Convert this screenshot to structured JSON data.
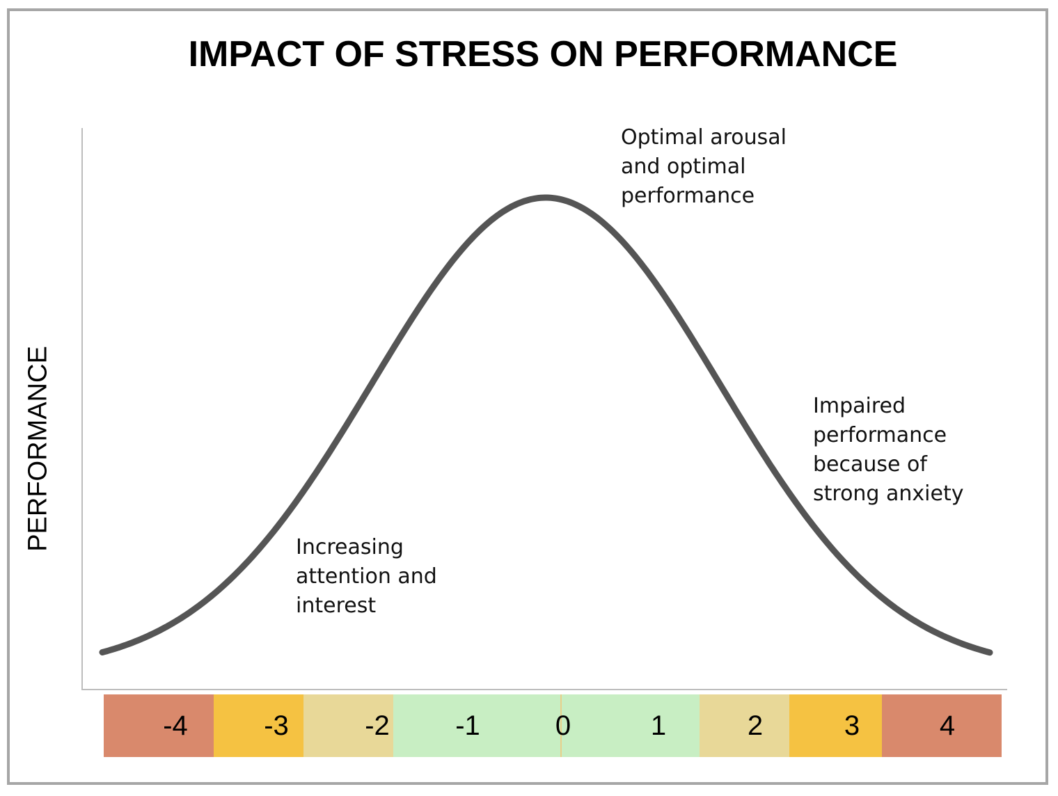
{
  "title": "IMPACT OF STRESS ON PERFORMANCE",
  "y_axis_label": "PERFORMANCE",
  "annotations": {
    "optimal": "Optimal arousal\nand optimal\nperformance",
    "impaired": "Impaired\nperformance\nbecause of\nstrong anxiety",
    "increasing": "Increasing\nattention and\ninterest"
  },
  "colors": {
    "curve": "#555555",
    "axis": "#bdbdbd",
    "frame": "#a6a6a6",
    "zone_high": "#d9896c",
    "zone_mid": "#f5c242",
    "zone_low": "#e8d898",
    "zone_optimal": "#c8eec3"
  },
  "chart_data": {
    "type": "line",
    "title": "IMPACT OF STRESS ON PERFORMANCE",
    "ylabel": "PERFORMANCE",
    "xlabel": "",
    "x_ticks": [
      "-4",
      "-3",
      "-2",
      "-1",
      "0",
      "1",
      "2",
      "3",
      "4"
    ],
    "xlim": [
      -4.5,
      4.5
    ],
    "curve": "bell-shaped, peak at x = 0",
    "grid": false,
    "scale_zones": [
      {
        "from": -4.5,
        "to": -3.4,
        "color": "#d9896c"
      },
      {
        "from": -3.4,
        "to": -2.5,
        "color": "#f5c242"
      },
      {
        "from": -2.5,
        "to": -1.6,
        "color": "#e8d898"
      },
      {
        "from": -1.6,
        "to": 1.47,
        "color": "#c8eec3"
      },
      {
        "from": 1.47,
        "to": 2.37,
        "color": "#e8d898"
      },
      {
        "from": 2.37,
        "to": 3.3,
        "color": "#f5c242"
      },
      {
        "from": 3.3,
        "to": 4.5,
        "color": "#d9896c"
      }
    ]
  }
}
